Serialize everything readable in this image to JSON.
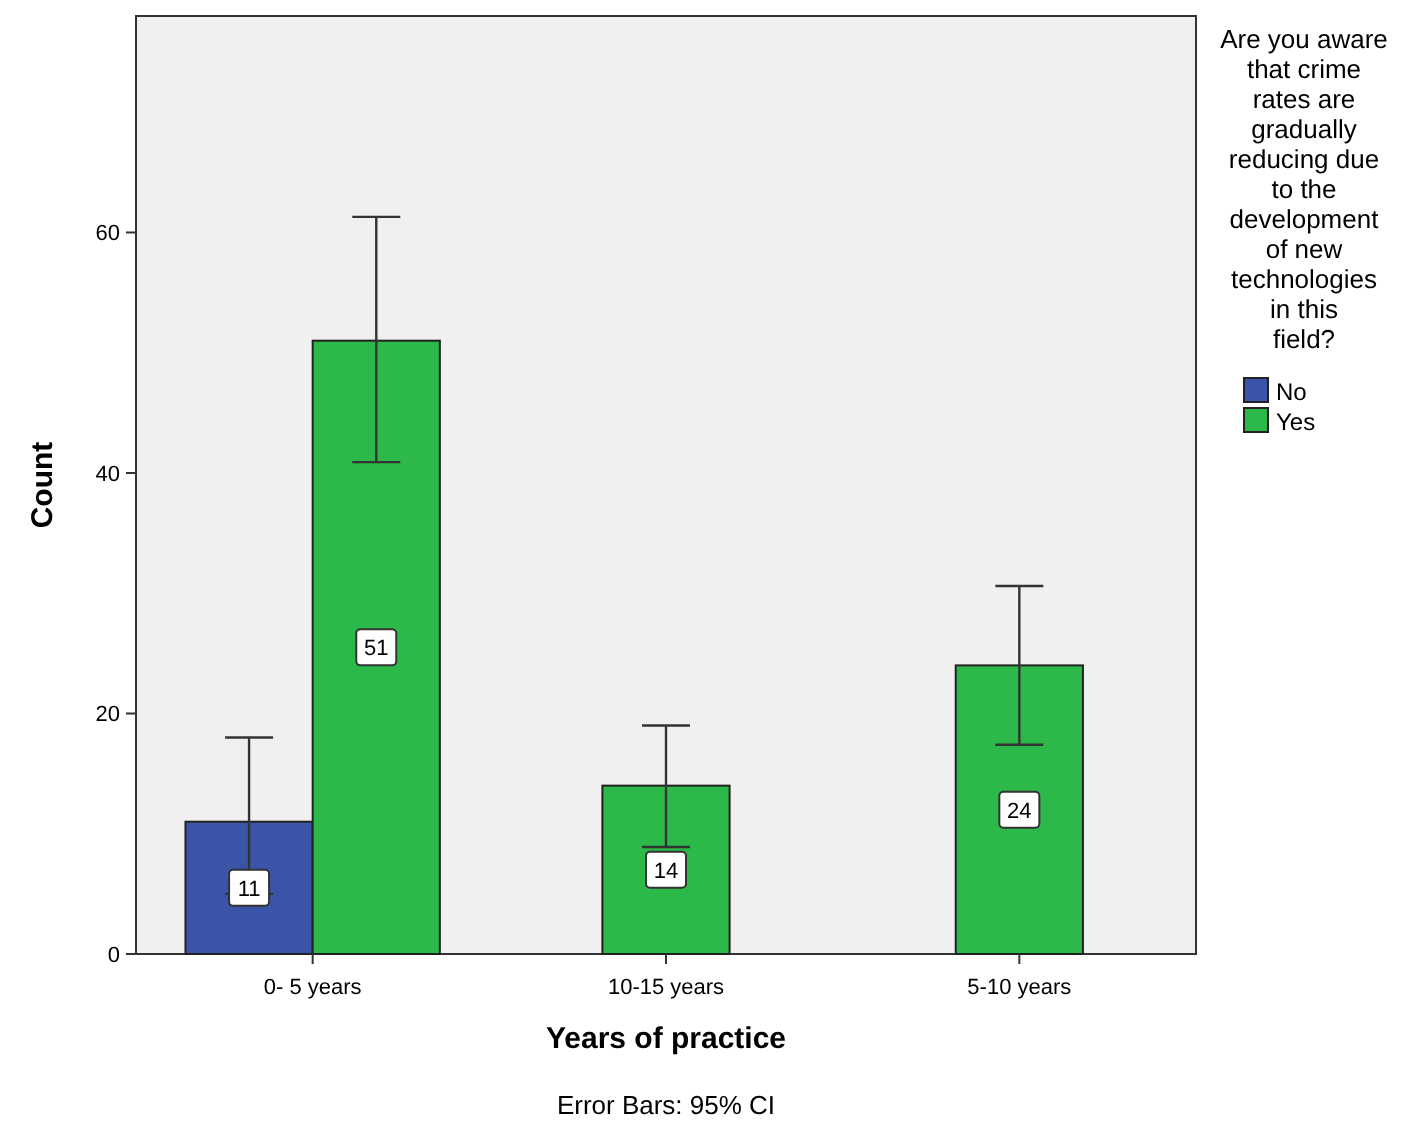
{
  "chart_data": {
    "type": "bar",
    "xlabel": "Years of practice",
    "ylabel": "Count",
    "legend_title": "Are you aware that crime rates are gradually reducing due to the development of new technologies in this field?",
    "categories": [
      "0- 5 years",
      "10-15 years",
      "5-10 years"
    ],
    "series": [
      {
        "name": "No",
        "color": "#3a54a8",
        "values": [
          11,
          null,
          null
        ],
        "errors": [
          [
            5,
            18
          ],
          null,
          null
        ]
      },
      {
        "name": "Yes",
        "color": "#2db84a",
        "values": [
          51,
          14,
          24
        ],
        "errors": [
          [
            40.9,
            61.3
          ],
          [
            8.9,
            19
          ],
          [
            17.4,
            30.6
          ]
        ]
      }
    ],
    "ylim": [
      0,
      78
    ],
    "yticks": [
      0,
      20,
      40,
      60
    ],
    "data_labels": true,
    "legend": "right",
    "grid": false,
    "annotations": [
      "Error Bars: 95% CI"
    ]
  }
}
